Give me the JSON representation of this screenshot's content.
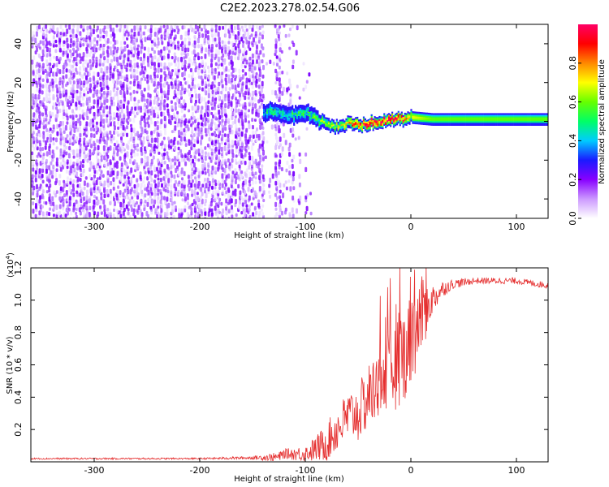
{
  "title": "C2E2.2023.278.02.54.G06",
  "colorbar": {
    "label": "Normalized spectral amplitude",
    "ticks": [
      "0.0",
      "0.2",
      "0.4",
      "0.6",
      "0.8"
    ],
    "tick_values": [
      0.0,
      0.2,
      0.4,
      0.6,
      0.8
    ],
    "range": [
      0,
      1
    ],
    "colors": [
      "#ffffff",
      "#cc99ff",
      "#8800ff",
      "#1a1aff",
      "#00ccff",
      "#00ff66",
      "#66ff00",
      "#ffff00",
      "#ff8800",
      "#ff0000",
      "#ff0066"
    ]
  },
  "top_plot": {
    "xlabel": "Height of straight line (km)",
    "ylabel": "Frequency (Hz)",
    "x_ticks": [
      "-300",
      "-200",
      "-100",
      "0",
      "100"
    ],
    "x_tick_values": [
      -300,
      -200,
      -100,
      0,
      100
    ],
    "y_ticks": [
      "-40",
      "-20",
      "0",
      "20",
      "40"
    ],
    "y_tick_values": [
      -40,
      -20,
      0,
      20,
      40
    ],
    "xlim": [
      -360,
      130
    ],
    "ylim": [
      -50,
      50
    ]
  },
  "bottom_plot": {
    "xlabel": "Height of straight line (km)",
    "ylabel": "SNR (10 * v/v)",
    "scale_note": "(x10",
    "scale_exp": "4",
    "scale_close": ")",
    "x_ticks": [
      "-300",
      "-200",
      "-100",
      "0",
      "100"
    ],
    "x_tick_values": [
      -300,
      -200,
      -100,
      0,
      100
    ],
    "y_ticks": [
      "0.2",
      "0.4",
      "0.6",
      "0.8",
      "1.0",
      "1.2"
    ],
    "y_tick_values": [
      0.2,
      0.4,
      0.6,
      0.8,
      1.0,
      1.2
    ],
    "xlim": [
      -360,
      130
    ],
    "ylim": [
      0,
      1.2
    ],
    "line_color": "#e53030"
  },
  "chart_data": [
    {
      "type": "heatmap",
      "title": "C2E2.2023.278.02.54.G06",
      "xlabel": "Height of straight line (km)",
      "ylabel": "Frequency (Hz)",
      "xlim": [
        -360,
        130
      ],
      "ylim": [
        -50,
        50
      ],
      "colorbar_label": "Normalized spectral amplitude",
      "noise_region": {
        "x_from": -360,
        "x_to": -95,
        "amplitude": 0.1
      },
      "signal_band": {
        "x": [
          -140,
          -130,
          -120,
          -110,
          -100,
          -90,
          -80,
          -70,
          -60,
          -50,
          -40,
          -30,
          -20,
          -10,
          0,
          20,
          40,
          60,
          80,
          100,
          120,
          130
        ],
        "center_hz": [
          4,
          5,
          4,
          3,
          4,
          1,
          -1,
          -3,
          -1,
          -2,
          -1,
          0,
          1,
          1,
          2,
          1,
          1,
          1,
          1,
          1,
          1,
          1
        ],
        "half_width_hz": [
          4,
          4,
          4,
          4,
          4,
          4,
          3,
          3,
          3,
          3,
          3,
          3,
          3,
          3,
          3,
          3,
          3,
          3,
          3,
          3,
          3,
          3
        ],
        "peak_amplitude": [
          0.45,
          0.5,
          0.45,
          0.5,
          0.5,
          0.55,
          0.6,
          0.65,
          0.75,
          0.85,
          0.95,
          0.95,
          0.95,
          0.9,
          0.7,
          0.6,
          0.6,
          0.6,
          0.6,
          0.6,
          0.6,
          0.6
        ]
      }
    },
    {
      "type": "line",
      "xlabel": "Height of straight line (km)",
      "ylabel": "SNR (10 * v/v)",
      "y_scale": 10000,
      "xlim": [
        -360,
        130
      ],
      "ylim": [
        0,
        1.2
      ],
      "series": [
        {
          "name": "SNR",
          "x": [
            -360,
            -300,
            -200,
            -150,
            -125,
            -120,
            -110,
            -100,
            -90,
            -80,
            -70,
            -60,
            -50,
            -40,
            -30,
            -20,
            -10,
            0,
            10,
            20,
            30,
            40,
            60,
            80,
            100,
            120,
            130
          ],
          "y": [
            0.02,
            0.02,
            0.02,
            0.025,
            0.03,
            0.05,
            0.05,
            0.05,
            0.08,
            0.12,
            0.2,
            0.28,
            0.3,
            0.4,
            0.5,
            0.55,
            0.62,
            0.75,
            0.9,
            1.0,
            1.07,
            1.1,
            1.12,
            1.12,
            1.12,
            1.1,
            1.09
          ],
          "noise": [
            0.005,
            0.005,
            0.005,
            0.01,
            0.03,
            0.03,
            0.04,
            0.05,
            0.08,
            0.12,
            0.14,
            0.16,
            0.18,
            0.2,
            0.22,
            0.25,
            0.28,
            0.3,
            0.25,
            0.1,
            0.05,
            0.03,
            0.02,
            0.02,
            0.02,
            0.02,
            0.02
          ]
        }
      ]
    }
  ]
}
